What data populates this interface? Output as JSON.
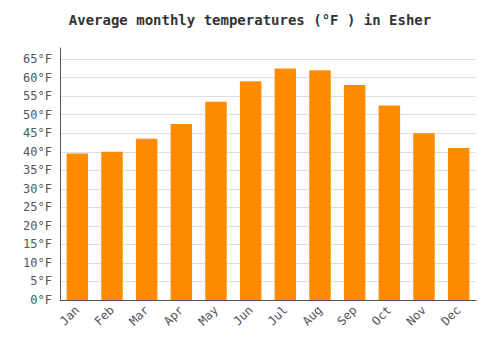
{
  "chart_data": {
    "type": "bar",
    "title": "Average monthly temperatures (°F ) in Esher",
    "categories": [
      "Jan",
      "Feb",
      "Mar",
      "Apr",
      "May",
      "Jun",
      "Jul",
      "Aug",
      "Sep",
      "Oct",
      "Nov",
      "Dec"
    ],
    "values": [
      39.5,
      40.0,
      43.5,
      47.5,
      53.5,
      59.0,
      62.5,
      62.0,
      58.0,
      52.5,
      45.0,
      41.0
    ],
    "color": "#FF8C00",
    "ylim": [
      0,
      68
    ],
    "yticks": [
      {
        "value": 0,
        "label": "0°F"
      },
      {
        "value": 5,
        "label": "5°F"
      },
      {
        "value": 10,
        "label": "10°F"
      },
      {
        "value": 15,
        "label": "15°F"
      },
      {
        "value": 20,
        "label": "20°F"
      },
      {
        "value": 25,
        "label": "25°F"
      },
      {
        "value": 30,
        "label": "30°F"
      },
      {
        "value": 35,
        "label": "35°F"
      },
      {
        "value": 40,
        "label": "40°F"
      },
      {
        "value": 45,
        "label": "45°F"
      },
      {
        "value": 50,
        "label": "50°F"
      },
      {
        "value": 55,
        "label": "55°F"
      },
      {
        "value": 60,
        "label": "60°F"
      },
      {
        "value": 65,
        "label": "65°F"
      }
    ],
    "grid": true
  }
}
